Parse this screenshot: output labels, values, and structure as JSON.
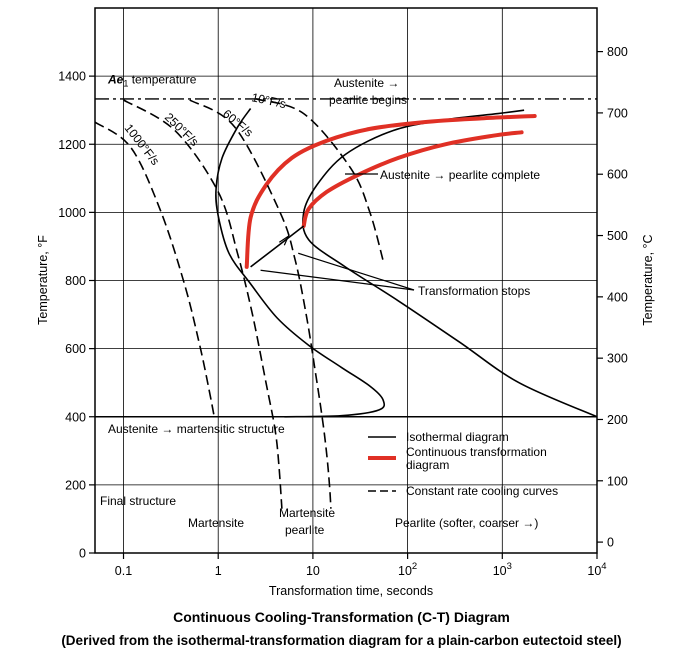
{
  "chart_data": {
    "type": "line",
    "xlabel": "Transformation time, seconds",
    "ylabel_left": "Temperature, °F",
    "ylabel_right": "Temperature, °C",
    "x_scale": "log",
    "xlim": [
      0.05,
      10000
    ],
    "ylim_F": [
      0,
      1600
    ],
    "x_ticks": [
      {
        "value": 0.1,
        "label": "0.1"
      },
      {
        "value": 1,
        "label": "1"
      },
      {
        "value": 10,
        "label": "10"
      },
      {
        "value": 100,
        "label": "10",
        "sup": "2"
      },
      {
        "value": 1000,
        "label": "10",
        "sup": "3"
      },
      {
        "value": 10000,
        "label": "10",
        "sup": "4"
      }
    ],
    "y_ticks_F": [
      "0",
      "200",
      "400",
      "600",
      "800",
      "1000",
      "1200",
      "1400"
    ],
    "y_ticks_C": [
      "0",
      "100",
      "200",
      "300",
      "400",
      "500",
      "600",
      "700",
      "800"
    ],
    "grid": true,
    "ae1_temperature_F": 1333,
    "ms_temperature_F": 400,
    "legend_position": "bottom-right",
    "legend": [
      {
        "label": "Isothermal diagram",
        "style": "solid",
        "color": "#000000"
      },
      {
        "label": "Continuous transformation diagram",
        "style": "solid-thick",
        "color": "#e03025"
      },
      {
        "label": "Constant rate cooling curves",
        "style": "dashed",
        "color": "#000000"
      }
    ],
    "series": [
      {
        "name": "Isothermal diagram",
        "kind": "begin",
        "points": [
          [
            2.2,
            1305
          ],
          [
            1.6,
            1250
          ],
          [
            1.1,
            1160
          ],
          [
            0.95,
            1070
          ],
          [
            1.0,
            990
          ],
          [
            1.3,
            880
          ],
          [
            2.2,
            790
          ],
          [
            4.2,
            690
          ],
          [
            9,
            610
          ],
          [
            20,
            545
          ],
          [
            40,
            490
          ],
          [
            55,
            450
          ],
          [
            50,
            420
          ],
          [
            20,
            403
          ],
          [
            5,
            400
          ]
        ]
      },
      {
        "name": "Isothermal diagram",
        "kind": "end",
        "points": [
          [
            1700,
            1300
          ],
          [
            900,
            1290
          ],
          [
            250,
            1272
          ],
          [
            70,
            1240
          ],
          [
            22,
            1170
          ],
          [
            11,
            1080
          ],
          [
            8,
            1000
          ],
          [
            9,
            920
          ],
          [
            22,
            840
          ],
          [
            80,
            740
          ],
          [
            350,
            620
          ],
          [
            1500,
            500
          ],
          [
            10000,
            400
          ]
        ]
      },
      {
        "name": "Continuous transformation diagram",
        "kind": "begin",
        "points": [
          [
            2.0,
            840
          ],
          [
            2.2,
            985
          ],
          [
            3.2,
            1080
          ],
          [
            6,
            1160
          ],
          [
            14,
            1210
          ],
          [
            40,
            1245
          ],
          [
            150,
            1265
          ],
          [
            600,
            1276
          ],
          [
            2200,
            1283
          ]
        ]
      },
      {
        "name": "Continuous transformation diagram",
        "kind": "end",
        "points": [
          [
            8,
            960
          ],
          [
            9,
            1010
          ],
          [
            14,
            1060
          ],
          [
            30,
            1110
          ],
          [
            80,
            1160
          ],
          [
            250,
            1200
          ],
          [
            800,
            1225
          ],
          [
            1600,
            1235
          ]
        ]
      },
      {
        "name": "Transformation stops",
        "kind": "isotherm",
        "points": [
          [
            2.2,
            840
          ],
          [
            8,
            960
          ]
        ]
      },
      {
        "name": "1000°F/s",
        "kind": "cooling",
        "points": [
          [
            0.05,
            1265
          ],
          [
            0.12,
            1190
          ],
          [
            0.25,
            1000
          ],
          [
            0.45,
            780
          ],
          [
            0.65,
            600
          ],
          [
            0.8,
            480
          ],
          [
            0.9,
            405
          ]
        ]
      },
      {
        "name": "250°F/s",
        "kind": "cooling",
        "points": [
          [
            0.1,
            1330
          ],
          [
            0.35,
            1240
          ],
          [
            1.0,
            1060
          ],
          [
            1.6,
            880
          ],
          [
            2.3,
            700
          ],
          [
            3.2,
            500
          ],
          [
            4.0,
            360
          ],
          [
            4.4,
            250
          ],
          [
            4.7,
            130
          ]
        ]
      },
      {
        "name": "60°F/s",
        "kind": "cooling",
        "points": [
          [
            0.5,
            1330
          ],
          [
            1.5,
            1250
          ],
          [
            4.5,
            1000
          ],
          [
            6.5,
            860
          ],
          [
            8.5,
            700
          ],
          [
            10.5,
            540
          ],
          [
            12.5,
            400
          ],
          [
            14,
            290
          ],
          [
            15,
            195
          ],
          [
            15.5,
            130
          ]
        ]
      },
      {
        "name": "10°F/s",
        "kind": "cooling",
        "points": [
          [
            2.5,
            1333
          ],
          [
            8,
            1290
          ],
          [
            25,
            1130
          ],
          [
            40,
            1000
          ],
          [
            55,
            860
          ]
        ]
      }
    ],
    "annotations": [
      {
        "text": "Ae₁ temperature",
        "F": 1390
      },
      {
        "text": "10°F/s"
      },
      {
        "text": "60°F/s"
      },
      {
        "text": "250°F/s"
      },
      {
        "text": "1000°F/s"
      },
      {
        "text": "Austenite →"
      },
      {
        "text": "pearlite begins"
      },
      {
        "text": "Austenite → pearlite complete"
      },
      {
        "text": "Transformation stops"
      },
      {
        "text": "Austenite → martensitic structure"
      },
      {
        "text": "Final structure"
      },
      {
        "text": "Martensite"
      },
      {
        "text": "Martensite"
      },
      {
        "text": "pearlite"
      },
      {
        "text": "Pearlite (softer, coarser →)"
      }
    ]
  },
  "caption": {
    "title": "Continuous Cooling-Transformation (C-T) Diagram",
    "subtitle": "(Derived from the isothermal-transformation diagram for a plain-carbon eutectoid steel)"
  }
}
